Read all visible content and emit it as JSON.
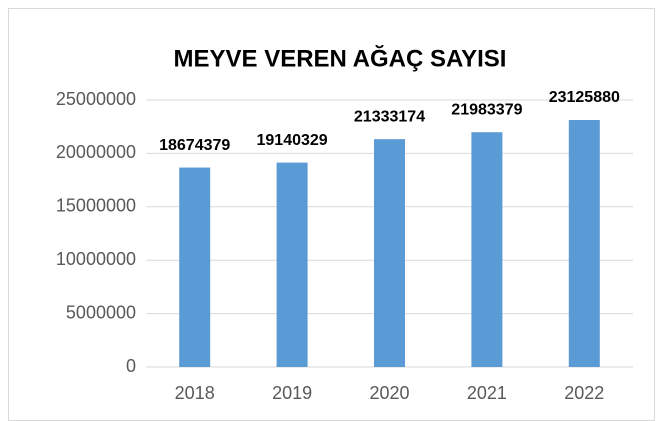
{
  "chart_data": {
    "type": "bar",
    "title": "MEYVE VEREN AĞAÇ SAYISI",
    "categories": [
      "2018",
      "2019",
      "2020",
      "2021",
      "2022"
    ],
    "values": [
      18674379,
      19140329,
      21333174,
      21983379,
      23125880
    ],
    "color": "#5b9bd5",
    "ylim": [
      0,
      25000000
    ],
    "yticks": [
      0,
      5000000,
      10000000,
      15000000,
      20000000,
      25000000
    ],
    "grid": true
  }
}
